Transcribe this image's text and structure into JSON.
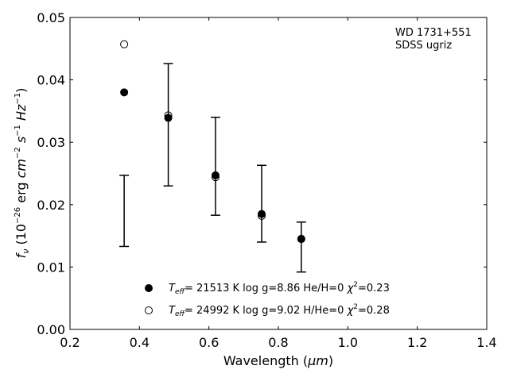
{
  "chart_data": {
    "type": "scatter",
    "title": "",
    "annotation": [
      "WD 1731+551",
      "SDSS ugriz"
    ],
    "xlabel": {
      "main": "Wavelength (",
      "unit": "μm",
      "close": ")"
    },
    "ylabel": "f_ν (10^-26 erg cm^-2 s^-1 Hz^-1)",
    "xlim": [
      0.2,
      1.4
    ],
    "ylim": [
      0.0,
      0.05
    ],
    "xticks": [
      "0.2",
      "0.4",
      "0.6",
      "0.8",
      "1.0",
      "1.2",
      "1.4"
    ],
    "yticks": [
      "0.00",
      "0.01",
      "0.02",
      "0.03",
      "0.04",
      "0.05"
    ],
    "observed": {
      "x": [
        0.356,
        0.483,
        0.619,
        0.752,
        0.866
      ],
      "y_low": [
        0.0133,
        0.023,
        0.0183,
        0.014,
        0.0092
      ],
      "y_high": [
        0.0247,
        0.0426,
        0.034,
        0.0263,
        0.0172
      ]
    },
    "series": [
      {
        "marker": "filled-circle",
        "legend": {
          "teff": "= 21513 K  log g=8.86  He/H=0  ",
          "chi": "=0.23"
        },
        "x": [
          0.356,
          0.483,
          0.619,
          0.752,
          0.866
        ],
        "y": [
          0.038,
          0.0339,
          0.0247,
          0.0185,
          0.0145
        ]
      },
      {
        "marker": "open-circle",
        "legend": {
          "teff": "= 24992 K  log g=9.02  H/He=0  ",
          "chi": "=0.28"
        },
        "x": [
          0.356,
          0.483,
          0.619,
          0.752,
          0.866
        ],
        "y": [
          0.0457,
          0.0343,
          0.0244,
          0.0182,
          0.0145
        ]
      }
    ],
    "legend_position": "bottom-center",
    "grid": false
  }
}
